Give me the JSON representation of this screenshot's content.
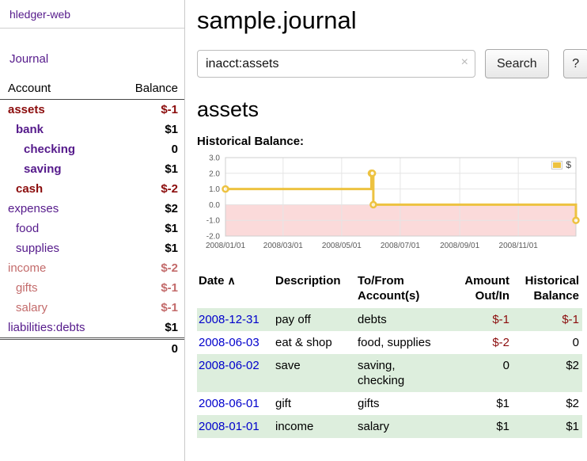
{
  "colors": {
    "purple": "#551a8b",
    "neg_strong": "#8b0c0c",
    "neg_soft": "#c36b6b",
    "link_blue": "#0000cc",
    "row_green": "#ddeedd",
    "chart_line": "#edc240",
    "chart_below_zero": "#fbdada"
  },
  "sidebar": {
    "app_title": "hledger-web",
    "journal_link": "Journal",
    "accounts": {
      "header_account": "Account",
      "header_balance": "Balance",
      "rows": [
        {
          "name": "assets",
          "balance": "$-1",
          "indent": 0,
          "name_style": "neg-strong",
          "bold": true,
          "balance_style": "neg-strong"
        },
        {
          "name": "bank",
          "balance": "$1",
          "indent": 1,
          "name_style": "purple",
          "bold": true,
          "balance_style": "plain"
        },
        {
          "name": "checking",
          "balance": "0",
          "indent": 2,
          "name_style": "purple",
          "bold": true,
          "balance_style": "plain"
        },
        {
          "name": "saving",
          "balance": "$1",
          "indent": 2,
          "name_style": "purple",
          "bold": true,
          "balance_style": "plain"
        },
        {
          "name": "cash",
          "balance": "$-2",
          "indent": 1,
          "name_style": "neg-strong",
          "bold": true,
          "balance_style": "neg-strong"
        },
        {
          "name": "expenses",
          "balance": "$2",
          "indent": 0,
          "name_style": "purple",
          "bold": false,
          "balance_style": "plain"
        },
        {
          "name": "food",
          "balance": "$1",
          "indent": 1,
          "name_style": "purple",
          "bold": false,
          "balance_style": "plain"
        },
        {
          "name": "supplies",
          "balance": "$1",
          "indent": 1,
          "name_style": "purple",
          "bold": false,
          "balance_style": "plain"
        },
        {
          "name": "income",
          "balance": "$-2",
          "indent": 0,
          "name_style": "neg-soft",
          "bold": false,
          "balance_style": "neg-soft"
        },
        {
          "name": "gifts",
          "balance": "$-1",
          "indent": 1,
          "name_style": "neg-soft",
          "bold": false,
          "balance_style": "neg-soft"
        },
        {
          "name": "salary",
          "balance": "$-1",
          "indent": 1,
          "name_style": "neg-soft",
          "bold": false,
          "balance_style": "neg-soft"
        },
        {
          "name": "liabilities:debts",
          "balance": "$1",
          "indent": 0,
          "name_style": "purple",
          "bold": false,
          "balance_style": "plain"
        }
      ],
      "total": "0"
    }
  },
  "main": {
    "title": "sample.journal",
    "search": {
      "value": "inacct:assets",
      "clear": "×",
      "button": "Search",
      "help": "?"
    },
    "account_heading": "assets",
    "section_label": "Historical Balance:",
    "chart_data": {
      "type": "line",
      "title": "Historical Balance",
      "step": true,
      "legend": {
        "label": "$",
        "position": "top-right"
      },
      "ylim": [
        -2,
        3
      ],
      "yticks": [
        3.0,
        2.0,
        1.0,
        0.0,
        -1.0,
        -2.0
      ],
      "xticks": [
        "2008/01/01",
        "2008/03/01",
        "2008/05/01",
        "2008/07/01",
        "2008/09/01",
        "2008/11/01"
      ],
      "xrange": [
        "2008-01-01",
        "2008-12-31"
      ],
      "grid": true,
      "below_zero_shaded": true,
      "series": [
        {
          "name": "$",
          "points": [
            {
              "x": "2008-01-01",
              "y": 1
            },
            {
              "x": "2008-06-01",
              "y": 2
            },
            {
              "x": "2008-06-02",
              "y": 2
            },
            {
              "x": "2008-06-03",
              "y": 0
            },
            {
              "x": "2008-12-31",
              "y": -1
            }
          ]
        }
      ]
    },
    "register": {
      "headers": [
        "Date",
        "Description",
        "To/From\nAccount(s)",
        "Amount\nOut/In",
        "Historical\nBalance"
      ],
      "sort_icon": "∧",
      "rows": [
        {
          "date": "2008-12-31",
          "description": "pay off",
          "accounts": "debts",
          "amount": "$-1",
          "amount_neg": true,
          "balance": "$-1",
          "balance_neg": true,
          "shaded": true
        },
        {
          "date": "2008-06-03",
          "description": "eat & shop",
          "accounts": "food, supplies",
          "amount": "$-2",
          "amount_neg": true,
          "balance": "0",
          "balance_neg": false,
          "shaded": false
        },
        {
          "date": "2008-06-02",
          "description": "save",
          "accounts": "saving,\nchecking",
          "amount": "0",
          "amount_neg": false,
          "balance": "$2",
          "balance_neg": false,
          "shaded": true
        },
        {
          "date": "2008-06-01",
          "description": "gift",
          "accounts": "gifts",
          "amount": "$1",
          "amount_neg": false,
          "balance": "$2",
          "balance_neg": false,
          "shaded": false
        },
        {
          "date": "2008-01-01",
          "description": "income",
          "accounts": "salary",
          "amount": "$1",
          "amount_neg": false,
          "balance": "$1",
          "balance_neg": false,
          "shaded": true
        }
      ]
    }
  }
}
